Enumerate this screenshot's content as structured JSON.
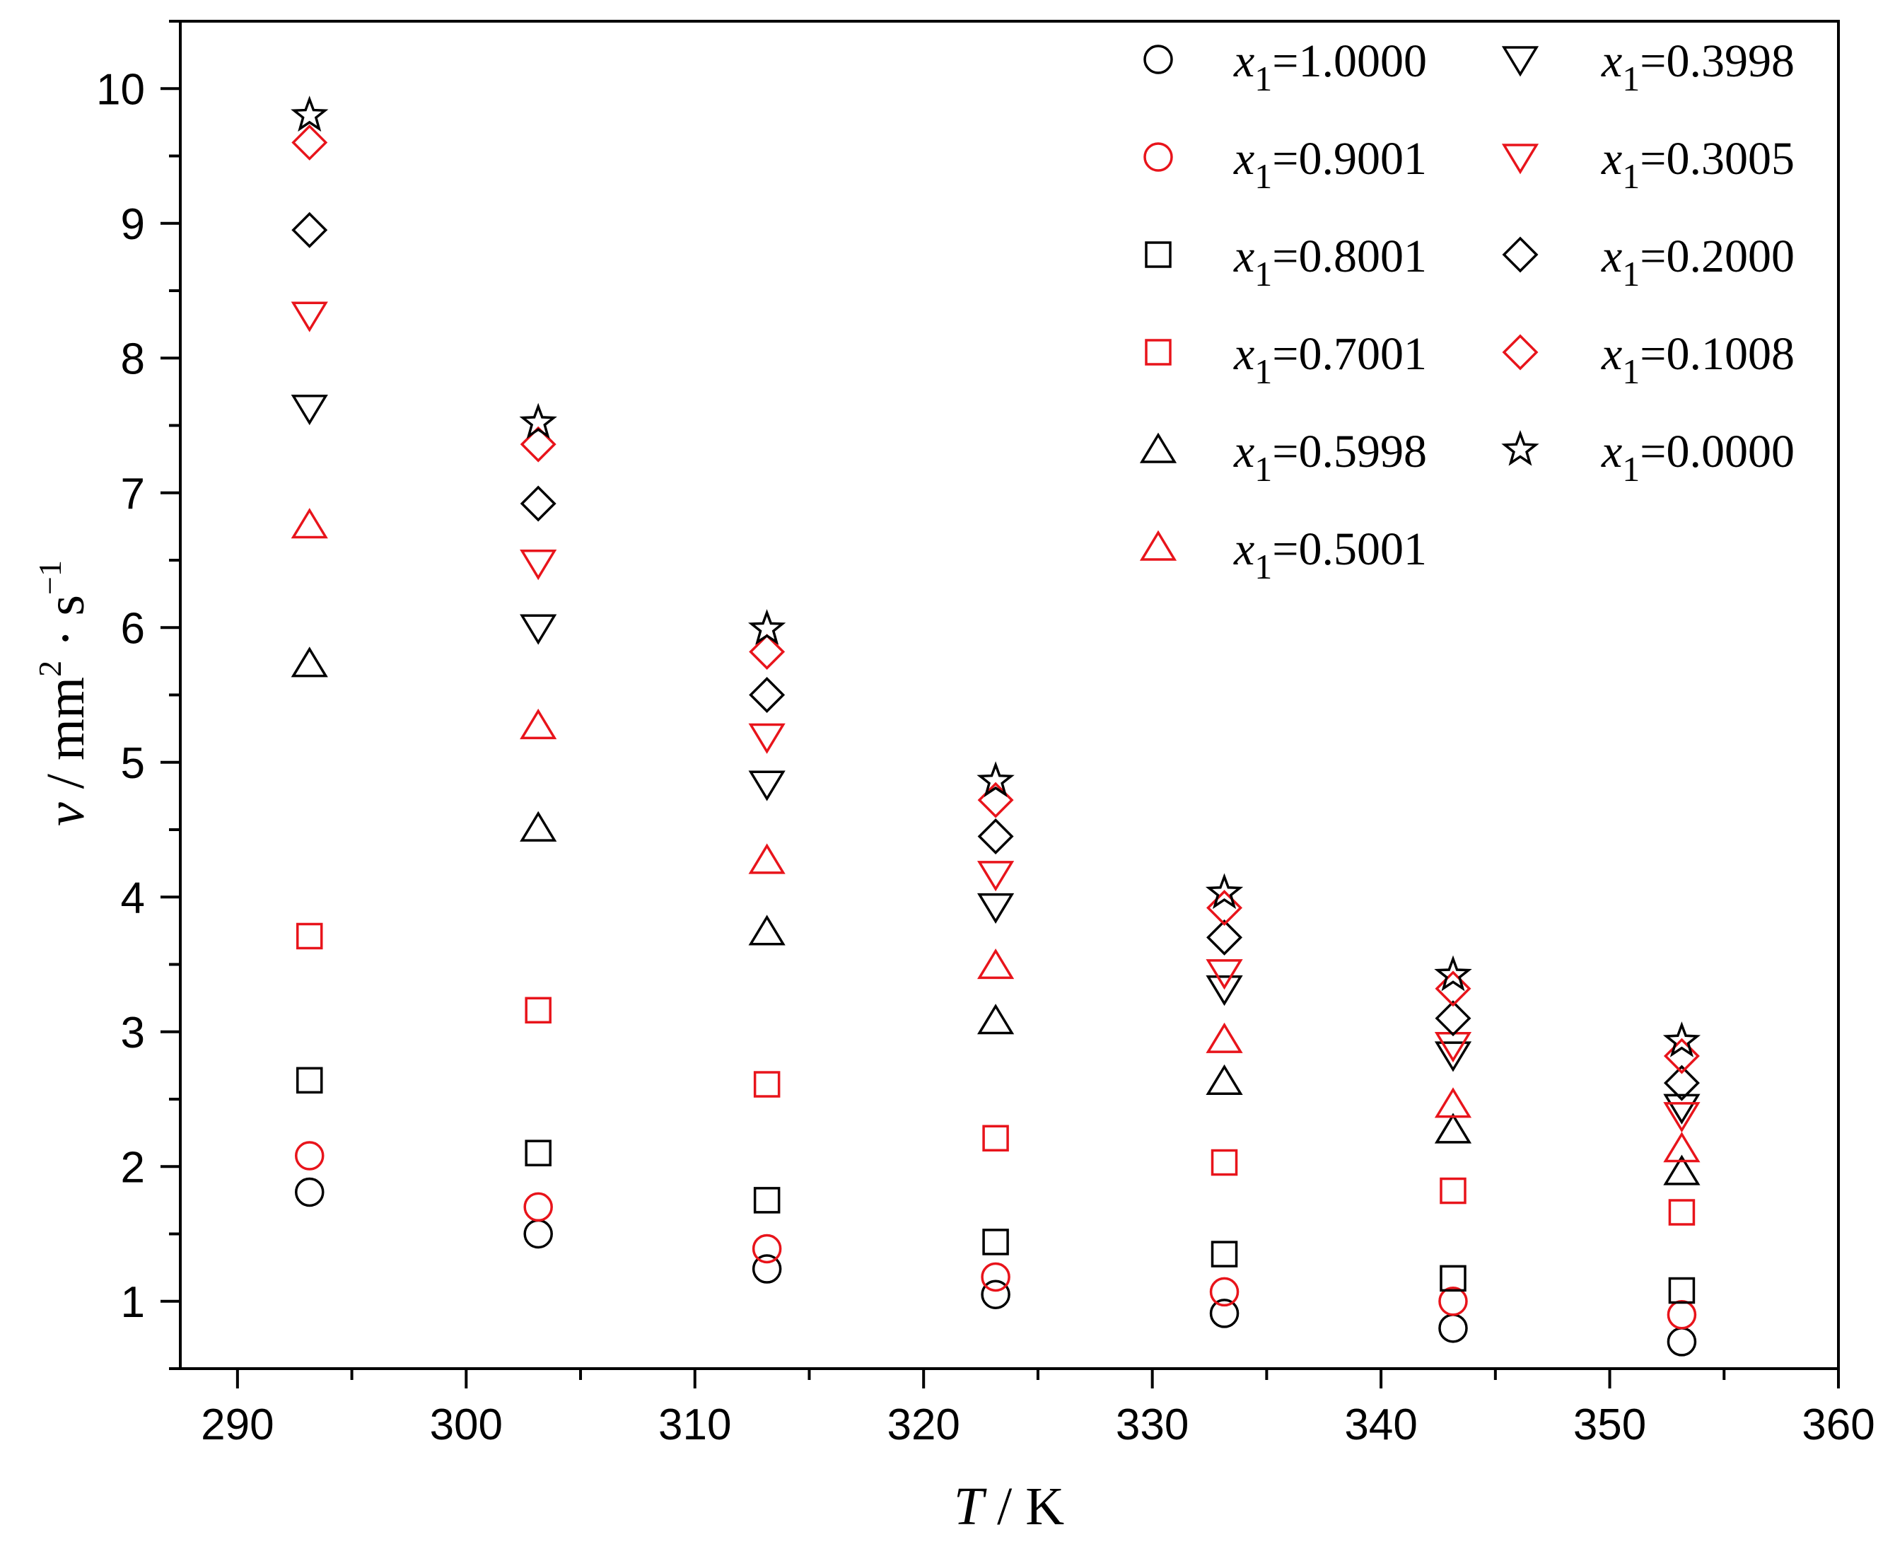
{
  "chart_data": {
    "type": "scatter",
    "xlabel": {
      "var": "T",
      "unit": " / K"
    },
    "ylabel": {
      "var": "ν",
      "unit": " / mm",
      "sup1": "2",
      "mid": " · s",
      "sup2": "−1"
    },
    "xlim": [
      287.5,
      360
    ],
    "ylim": [
      0.5,
      10.5
    ],
    "xticks": [
      290,
      300,
      310,
      320,
      330,
      340,
      350,
      360
    ],
    "yticks": [
      1,
      2,
      3,
      4,
      5,
      6,
      7,
      8,
      9,
      10
    ],
    "legend_position": "top-right",
    "x": [
      293.15,
      303.15,
      313.15,
      323.15,
      333.15,
      343.15,
      353.15
    ],
    "series": [
      {
        "name": "x1=1.0000",
        "label_var": "x",
        "label_sub": "1",
        "label_val": "=1.0000",
        "marker": "circle",
        "color": "#000000",
        "values": [
          1.81,
          1.5,
          1.24,
          1.05,
          0.91,
          0.8,
          0.7
        ]
      },
      {
        "name": "x1=0.9001",
        "label_var": "x",
        "label_sub": "1",
        "label_val": "=0.9001",
        "marker": "circle",
        "color": "#e8141b",
        "values": [
          2.08,
          1.7,
          1.39,
          1.18,
          1.07,
          1.0,
          0.9
        ]
      },
      {
        "name": "x1=0.8001",
        "label_var": "x",
        "label_sub": "1",
        "label_val": "=0.8001",
        "marker": "square",
        "color": "#000000",
        "values": [
          2.64,
          2.1,
          1.75,
          1.44,
          1.35,
          1.17,
          1.08
        ]
      },
      {
        "name": "x1=0.7001",
        "label_var": "x",
        "label_sub": "1",
        "label_val": "=0.7001",
        "marker": "square",
        "color": "#e8141b",
        "values": [
          3.71,
          3.16,
          2.61,
          2.21,
          2.03,
          1.82,
          1.66
        ]
      },
      {
        "name": "x1=0.5998",
        "label_var": "x",
        "label_sub": "1",
        "label_val": "=0.5998",
        "marker": "triangle-up",
        "color": "#000000",
        "values": [
          5.73,
          4.51,
          3.74,
          3.08,
          2.63,
          2.27,
          1.96
        ]
      },
      {
        "name": "x1=0.5001",
        "label_var": "x",
        "label_sub": "1",
        "label_val": "=0.5001",
        "marker": "triangle-up",
        "color": "#e8141b",
        "values": [
          6.76,
          5.27,
          4.27,
          3.49,
          2.94,
          2.46,
          2.13
        ]
      },
      {
        "name": "x1=0.3998",
        "label_var": "x",
        "label_sub": "1",
        "label_val": "=0.3998",
        "marker": "triangle-down",
        "color": "#000000",
        "values": [
          7.63,
          6.0,
          4.84,
          3.93,
          3.32,
          2.83,
          2.44
        ]
      },
      {
        "name": "x1=0.3005",
        "label_var": "x",
        "label_sub": "1",
        "label_val": "=0.3005",
        "marker": "triangle-down",
        "color": "#e8141b",
        "values": [
          8.32,
          6.48,
          5.19,
          4.17,
          3.44,
          2.9,
          2.38
        ]
      },
      {
        "name": "x1=0.2000",
        "label_var": "x",
        "label_sub": "1",
        "label_val": "=0.2000",
        "marker": "diamond",
        "color": "#000000",
        "values": [
          8.95,
          6.92,
          5.5,
          4.45,
          3.7,
          3.1,
          2.62
        ]
      },
      {
        "name": "x1=0.1008",
        "label_var": "x",
        "label_sub": "1",
        "label_val": "=0.1008",
        "marker": "diamond",
        "color": "#e8141b",
        "values": [
          9.6,
          7.36,
          5.82,
          4.72,
          3.92,
          3.32,
          2.82
        ]
      },
      {
        "name": "x1=0.0000",
        "label_var": "x",
        "label_sub": "1",
        "label_val": "=0.0000",
        "marker": "star",
        "color": "#000000",
        "values": [
          9.8,
          7.52,
          5.99,
          4.86,
          4.03,
          3.42,
          2.93
        ]
      }
    ]
  }
}
